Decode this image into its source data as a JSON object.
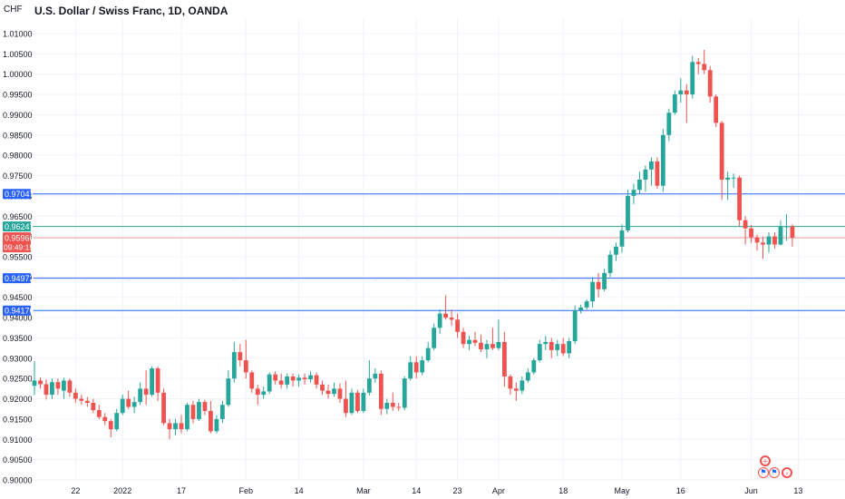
{
  "header": {
    "title": "U.S. Dollar / Swiss Franc, 1D, OANDA",
    "currency": "CHF"
  },
  "colors": {
    "up": "#26a69a",
    "down": "#ef5350",
    "level": "#2962ff",
    "current_line": "#ef9a9a",
    "highlight_line": "#26a69a"
  },
  "price_labels": {
    "current": "0.95966",
    "countdown": "09:49:15",
    "green": "0.96247"
  },
  "events": {
    "icons": [
      "plus-icon",
      "us-flag-icon",
      "us-flag-icon",
      "arrow-right-icon"
    ]
  },
  "chart_data": {
    "type": "candlestick",
    "title": "U.S. Dollar / Swiss Franc, 1D, OANDA",
    "xlabel": "",
    "ylabel": "",
    "ylim": [
      0.9,
      1.012
    ],
    "y_ticks": [
      "0.90000",
      "0.90500",
      "0.91000",
      "0.91500",
      "0.92000",
      "0.92500",
      "0.93000",
      "0.93500",
      "0.94000",
      "0.94500",
      "0.95000",
      "0.95500",
      "0.96000",
      "0.96500",
      "0.97000",
      "0.97500",
      "0.98000",
      "0.98500",
      "0.99000",
      "0.99500",
      "1.00000",
      "1.00500",
      "1.01000"
    ],
    "x_ticks": [
      {
        "label": "22",
        "date": "2021-12-22"
      },
      {
        "label": "2022",
        "date": "2022-01-03"
      },
      {
        "label": "17",
        "date": "2022-01-17"
      },
      {
        "label": "Feb",
        "date": "2022-02-01"
      },
      {
        "label": "14",
        "date": "2022-02-14"
      },
      {
        "label": "Mar",
        "date": "2022-03-01"
      },
      {
        "label": "14",
        "date": "2022-03-14"
      },
      {
        "label": "23",
        "date": "2022-03-23"
      },
      {
        "label": "Apr",
        "date": "2022-04-01"
      },
      {
        "label": "18",
        "date": "2022-04-18"
      },
      {
        "label": "May",
        "date": "2022-05-02"
      },
      {
        "label": "16",
        "date": "2022-05-16"
      },
      {
        "label": "Jun",
        "date": "2022-06-01"
      },
      {
        "label": "13",
        "date": "2022-06-13"
      }
    ],
    "horizontal_levels": [
      {
        "value": 0.97047,
        "label": "0.97047",
        "color": "#2962ff"
      },
      {
        "value": 0.96247,
        "label": "0.96247",
        "color": "#26a69a"
      },
      {
        "value": 0.94972,
        "label": "0.94972",
        "color": "#2962ff"
      },
      {
        "value": 0.94176,
        "label": "0.94176",
        "color": "#2962ff"
      }
    ],
    "current_price": 0.95966,
    "candles": [
      {
        "d": "2021-12-13",
        "o": 0.9232,
        "h": 0.9293,
        "l": 0.9209,
        "c": 0.9245
      },
      {
        "d": "2021-12-14",
        "o": 0.9245,
        "h": 0.9253,
        "l": 0.9225,
        "c": 0.9236
      },
      {
        "d": "2021-12-15",
        "o": 0.9236,
        "h": 0.9248,
        "l": 0.9198,
        "c": 0.921
      },
      {
        "d": "2021-12-16",
        "o": 0.921,
        "h": 0.925,
        "l": 0.92,
        "c": 0.9241
      },
      {
        "d": "2021-12-17",
        "o": 0.9241,
        "h": 0.925,
        "l": 0.921,
        "c": 0.9225
      },
      {
        "d": "2021-12-20",
        "o": 0.922,
        "h": 0.9252,
        "l": 0.92,
        "c": 0.9245
      },
      {
        "d": "2021-12-21",
        "o": 0.9245,
        "h": 0.925,
        "l": 0.9205,
        "c": 0.9215
      },
      {
        "d": "2021-12-22",
        "o": 0.9215,
        "h": 0.9225,
        "l": 0.919,
        "c": 0.92
      },
      {
        "d": "2021-12-23",
        "o": 0.92,
        "h": 0.921,
        "l": 0.9185,
        "c": 0.9195
      },
      {
        "d": "2021-12-24",
        "o": 0.9195,
        "h": 0.9205,
        "l": 0.918,
        "c": 0.919
      },
      {
        "d": "2021-12-27",
        "o": 0.919,
        "h": 0.92,
        "l": 0.9165,
        "c": 0.9172
      },
      {
        "d": "2021-12-28",
        "o": 0.9172,
        "h": 0.9185,
        "l": 0.915,
        "c": 0.9155
      },
      {
        "d": "2021-12-29",
        "o": 0.9155,
        "h": 0.9165,
        "l": 0.9135,
        "c": 0.9145
      },
      {
        "d": "2021-12-30",
        "o": 0.9145,
        "h": 0.915,
        "l": 0.9105,
        "c": 0.9125
      },
      {
        "d": "2021-12-31",
        "o": 0.9125,
        "h": 0.9175,
        "l": 0.912,
        "c": 0.9165
      },
      {
        "d": "2022-01-03",
        "o": 0.9165,
        "h": 0.921,
        "l": 0.916,
        "c": 0.92
      },
      {
        "d": "2022-01-04",
        "o": 0.92,
        "h": 0.922,
        "l": 0.9175,
        "c": 0.918
      },
      {
        "d": "2022-01-05",
        "o": 0.918,
        "h": 0.9205,
        "l": 0.9165,
        "c": 0.9192
      },
      {
        "d": "2022-01-06",
        "o": 0.9192,
        "h": 0.924,
        "l": 0.9185,
        "c": 0.9225
      },
      {
        "d": "2022-01-07",
        "o": 0.9225,
        "h": 0.927,
        "l": 0.9185,
        "c": 0.921
      },
      {
        "d": "2022-01-10",
        "o": 0.921,
        "h": 0.928,
        "l": 0.9205,
        "c": 0.9275
      },
      {
        "d": "2022-01-11",
        "o": 0.9275,
        "h": 0.928,
        "l": 0.9195,
        "c": 0.9215
      },
      {
        "d": "2022-01-12",
        "o": 0.9215,
        "h": 0.9225,
        "l": 0.9135,
        "c": 0.914
      },
      {
        "d": "2022-01-13",
        "o": 0.914,
        "h": 0.915,
        "l": 0.91,
        "c": 0.9125
      },
      {
        "d": "2022-01-14",
        "o": 0.9125,
        "h": 0.915,
        "l": 0.911,
        "c": 0.914
      },
      {
        "d": "2022-01-17",
        "o": 0.914,
        "h": 0.916,
        "l": 0.9115,
        "c": 0.9125
      },
      {
        "d": "2022-01-18",
        "o": 0.9125,
        "h": 0.919,
        "l": 0.912,
        "c": 0.9185
      },
      {
        "d": "2022-01-19",
        "o": 0.9185,
        "h": 0.9195,
        "l": 0.914,
        "c": 0.915
      },
      {
        "d": "2022-01-20",
        "o": 0.915,
        "h": 0.92,
        "l": 0.9145,
        "c": 0.9192
      },
      {
        "d": "2022-01-21",
        "o": 0.9192,
        "h": 0.9198,
        "l": 0.916,
        "c": 0.917
      },
      {
        "d": "2022-01-24",
        "o": 0.917,
        "h": 0.9195,
        "l": 0.9115,
        "c": 0.912
      },
      {
        "d": "2022-01-25",
        "o": 0.912,
        "h": 0.916,
        "l": 0.9115,
        "c": 0.915
      },
      {
        "d": "2022-01-26",
        "o": 0.915,
        "h": 0.9195,
        "l": 0.914,
        "c": 0.9185
      },
      {
        "d": "2022-01-27",
        "o": 0.9185,
        "h": 0.927,
        "l": 0.918,
        "c": 0.925
      },
      {
        "d": "2022-01-28",
        "o": 0.925,
        "h": 0.934,
        "l": 0.924,
        "c": 0.9315
      },
      {
        "d": "2022-01-31",
        "o": 0.9315,
        "h": 0.9335,
        "l": 0.928,
        "c": 0.9295
      },
      {
        "d": "2022-02-01",
        "o": 0.9295,
        "h": 0.9345,
        "l": 0.925,
        "c": 0.9265
      },
      {
        "d": "2022-02-02",
        "o": 0.9265,
        "h": 0.927,
        "l": 0.9215,
        "c": 0.9225
      },
      {
        "d": "2022-02-03",
        "o": 0.9225,
        "h": 0.9235,
        "l": 0.9185,
        "c": 0.921
      },
      {
        "d": "2022-02-04",
        "o": 0.921,
        "h": 0.923,
        "l": 0.92,
        "c": 0.9218
      },
      {
        "d": "2022-02-07",
        "o": 0.9218,
        "h": 0.9265,
        "l": 0.9212,
        "c": 0.926
      },
      {
        "d": "2022-02-08",
        "o": 0.926,
        "h": 0.9268,
        "l": 0.9235,
        "c": 0.9245
      },
      {
        "d": "2022-02-09",
        "o": 0.9245,
        "h": 0.9262,
        "l": 0.9225,
        "c": 0.9235
      },
      {
        "d": "2022-02-10",
        "o": 0.9235,
        "h": 0.9262,
        "l": 0.9225,
        "c": 0.9255
      },
      {
        "d": "2022-02-11",
        "o": 0.9255,
        "h": 0.9262,
        "l": 0.923,
        "c": 0.9245
      },
      {
        "d": "2022-02-14",
        "o": 0.9245,
        "h": 0.926,
        "l": 0.923,
        "c": 0.9252
      },
      {
        "d": "2022-02-15",
        "o": 0.9252,
        "h": 0.9262,
        "l": 0.9235,
        "c": 0.9248
      },
      {
        "d": "2022-02-16",
        "o": 0.9248,
        "h": 0.9268,
        "l": 0.924,
        "c": 0.9258
      },
      {
        "d": "2022-02-17",
        "o": 0.9258,
        "h": 0.9265,
        "l": 0.9225,
        "c": 0.9235
      },
      {
        "d": "2022-02-18",
        "o": 0.9235,
        "h": 0.9245,
        "l": 0.921,
        "c": 0.922
      },
      {
        "d": "2022-02-21",
        "o": 0.922,
        "h": 0.9235,
        "l": 0.92,
        "c": 0.9212
      },
      {
        "d": "2022-02-22",
        "o": 0.9212,
        "h": 0.924,
        "l": 0.9205,
        "c": 0.9225
      },
      {
        "d": "2022-02-23",
        "o": 0.9225,
        "h": 0.9238,
        "l": 0.919,
        "c": 0.92
      },
      {
        "d": "2022-02-24",
        "o": 0.92,
        "h": 0.9245,
        "l": 0.9155,
        "c": 0.9165
      },
      {
        "d": "2022-02-25",
        "o": 0.9165,
        "h": 0.9225,
        "l": 0.916,
        "c": 0.9215
      },
      {
        "d": "2022-02-28",
        "o": 0.9215,
        "h": 0.9222,
        "l": 0.9165,
        "c": 0.917
      },
      {
        "d": "2022-03-01",
        "o": 0.917,
        "h": 0.9225,
        "l": 0.9165,
        "c": 0.9215
      },
      {
        "d": "2022-03-02",
        "o": 0.9215,
        "h": 0.9295,
        "l": 0.9208,
        "c": 0.925
      },
      {
        "d": "2022-03-03",
        "o": 0.925,
        "h": 0.9275,
        "l": 0.924,
        "c": 0.9262
      },
      {
        "d": "2022-03-04",
        "o": 0.9262,
        "h": 0.927,
        "l": 0.916,
        "c": 0.9175
      },
      {
        "d": "2022-03-07",
        "o": 0.9175,
        "h": 0.92,
        "l": 0.9162,
        "c": 0.919
      },
      {
        "d": "2022-03-08",
        "o": 0.919,
        "h": 0.9215,
        "l": 0.917,
        "c": 0.918
      },
      {
        "d": "2022-03-09",
        "o": 0.918,
        "h": 0.919,
        "l": 0.917,
        "c": 0.9178
      },
      {
        "d": "2022-03-10",
        "o": 0.9178,
        "h": 0.9255,
        "l": 0.9172,
        "c": 0.925
      },
      {
        "d": "2022-03-11",
        "o": 0.925,
        "h": 0.9305,
        "l": 0.9245,
        "c": 0.929
      },
      {
        "d": "2022-03-14",
        "o": 0.929,
        "h": 0.9305,
        "l": 0.925,
        "c": 0.9265
      },
      {
        "d": "2022-03-15",
        "o": 0.9265,
        "h": 0.9305,
        "l": 0.9258,
        "c": 0.9295
      },
      {
        "d": "2022-03-16",
        "o": 0.9295,
        "h": 0.934,
        "l": 0.929,
        "c": 0.9325
      },
      {
        "d": "2022-03-17",
        "o": 0.9325,
        "h": 0.9385,
        "l": 0.932,
        "c": 0.9375
      },
      {
        "d": "2022-03-18",
        "o": 0.9375,
        "h": 0.942,
        "l": 0.936,
        "c": 0.941
      },
      {
        "d": "2022-03-21",
        "o": 0.941,
        "h": 0.9455,
        "l": 0.9395,
        "c": 0.94
      },
      {
        "d": "2022-03-22",
        "o": 0.94,
        "h": 0.942,
        "l": 0.938,
        "c": 0.9395
      },
      {
        "d": "2022-03-23",
        "o": 0.9395,
        "h": 0.941,
        "l": 0.935,
        "c": 0.9365
      },
      {
        "d": "2022-03-24",
        "o": 0.9365,
        "h": 0.9375,
        "l": 0.9325,
        "c": 0.9335
      },
      {
        "d": "2022-03-25",
        "o": 0.9335,
        "h": 0.9355,
        "l": 0.932,
        "c": 0.9345
      },
      {
        "d": "2022-03-28",
        "o": 0.9345,
        "h": 0.9365,
        "l": 0.933,
        "c": 0.9338
      },
      {
        "d": "2022-03-29",
        "o": 0.9338,
        "h": 0.9358,
        "l": 0.9315,
        "c": 0.9322
      },
      {
        "d": "2022-03-30",
        "o": 0.9322,
        "h": 0.9345,
        "l": 0.93,
        "c": 0.9335
      },
      {
        "d": "2022-03-31",
        "o": 0.9335,
        "h": 0.9375,
        "l": 0.932,
        "c": 0.9325
      },
      {
        "d": "2022-04-01",
        "o": 0.9325,
        "h": 0.9395,
        "l": 0.932,
        "c": 0.934
      },
      {
        "d": "2022-04-04",
        "o": 0.934,
        "h": 0.9365,
        "l": 0.923,
        "c": 0.9255
      },
      {
        "d": "2022-04-05",
        "o": 0.9255,
        "h": 0.926,
        "l": 0.921,
        "c": 0.9225
      },
      {
        "d": "2022-04-06",
        "o": 0.9225,
        "h": 0.924,
        "l": 0.9195,
        "c": 0.922
      },
      {
        "d": "2022-04-07",
        "o": 0.922,
        "h": 0.9255,
        "l": 0.9212,
        "c": 0.9245
      },
      {
        "d": "2022-04-08",
        "o": 0.9245,
        "h": 0.9275,
        "l": 0.924,
        "c": 0.9265
      },
      {
        "d": "2022-04-11",
        "o": 0.9265,
        "h": 0.93,
        "l": 0.926,
        "c": 0.9295
      },
      {
        "d": "2022-04-12",
        "o": 0.9295,
        "h": 0.9345,
        "l": 0.929,
        "c": 0.9335
      },
      {
        "d": "2022-04-13",
        "o": 0.9335,
        "h": 0.9355,
        "l": 0.932,
        "c": 0.934
      },
      {
        "d": "2022-04-14",
        "o": 0.934,
        "h": 0.935,
        "l": 0.93,
        "c": 0.932
      },
      {
        "d": "2022-04-15",
        "o": 0.932,
        "h": 0.9345,
        "l": 0.9305,
        "c": 0.9335
      },
      {
        "d": "2022-04-18",
        "o": 0.9335,
        "h": 0.935,
        "l": 0.9305,
        "c": 0.9312
      },
      {
        "d": "2022-04-19",
        "o": 0.9312,
        "h": 0.935,
        "l": 0.93,
        "c": 0.9342
      },
      {
        "d": "2022-04-20",
        "o": 0.9342,
        "h": 0.943,
        "l": 0.9335,
        "c": 0.9418
      },
      {
        "d": "2022-04-21",
        "o": 0.9418,
        "h": 0.9432,
        "l": 0.941,
        "c": 0.9425
      },
      {
        "d": "2022-04-22",
        "o": 0.9425,
        "h": 0.9445,
        "l": 0.942,
        "c": 0.944
      },
      {
        "d": "2022-04-25",
        "o": 0.944,
        "h": 0.95,
        "l": 0.9425,
        "c": 0.9488
      },
      {
        "d": "2022-04-26",
        "o": 0.9488,
        "h": 0.951,
        "l": 0.945,
        "c": 0.947
      },
      {
        "d": "2022-04-27",
        "o": 0.947,
        "h": 0.952,
        "l": 0.9465,
        "c": 0.951
      },
      {
        "d": "2022-04-28",
        "o": 0.951,
        "h": 0.9565,
        "l": 0.95,
        "c": 0.9555
      },
      {
        "d": "2022-04-29",
        "o": 0.9555,
        "h": 0.9585,
        "l": 0.954,
        "c": 0.9575
      },
      {
        "d": "2022-05-02",
        "o": 0.9575,
        "h": 0.963,
        "l": 0.956,
        "c": 0.9615
      },
      {
        "d": "2022-05-03",
        "o": 0.9615,
        "h": 0.9715,
        "l": 0.961,
        "c": 0.97
      },
      {
        "d": "2022-05-04",
        "o": 0.97,
        "h": 0.973,
        "l": 0.968,
        "c": 0.9715
      },
      {
        "d": "2022-05-05",
        "o": 0.9715,
        "h": 0.976,
        "l": 0.9705,
        "c": 0.974
      },
      {
        "d": "2022-05-06",
        "o": 0.974,
        "h": 0.9775,
        "l": 0.971,
        "c": 0.9765
      },
      {
        "d": "2022-05-09",
        "o": 0.9765,
        "h": 0.9795,
        "l": 0.9725,
        "c": 0.9785
      },
      {
        "d": "2022-05-10",
        "o": 0.9785,
        "h": 0.9795,
        "l": 0.9718,
        "c": 0.9725
      },
      {
        "d": "2022-05-11",
        "o": 0.9725,
        "h": 0.9865,
        "l": 0.971,
        "c": 0.985
      },
      {
        "d": "2022-05-12",
        "o": 0.985,
        "h": 0.9915,
        "l": 0.9835,
        "c": 0.9905
      },
      {
        "d": "2022-05-13",
        "o": 0.9905,
        "h": 0.996,
        "l": 0.99,
        "c": 0.995
      },
      {
        "d": "2022-05-16",
        "o": 0.995,
        "h": 0.999,
        "l": 0.993,
        "c": 0.996
      },
      {
        "d": "2022-05-17",
        "o": 0.996,
        "h": 0.9975,
        "l": 0.988,
        "c": 0.995
      },
      {
        "d": "2022-05-18",
        "o": 0.995,
        "h": 1.0045,
        "l": 0.994,
        "c": 1.003
      },
      {
        "d": "2022-05-19",
        "o": 1.003,
        "h": 1.004,
        "l": 1.0,
        "c": 1.0025
      },
      {
        "d": "2022-05-20",
        "o": 1.0025,
        "h": 1.006,
        "l": 1.0,
        "c": 1.001
      },
      {
        "d": "2022-05-23",
        "o": 1.001,
        "h": 1.002,
        "l": 0.993,
        "c": 0.9945
      },
      {
        "d": "2022-05-24",
        "o": 0.9945,
        "h": 0.995,
        "l": 0.987,
        "c": 0.988
      },
      {
        "d": "2022-05-25",
        "o": 0.988,
        "h": 0.9885,
        "l": 0.969,
        "c": 0.974
      },
      {
        "d": "2022-05-26",
        "o": 0.974,
        "h": 0.976,
        "l": 0.969,
        "c": 0.9745
      },
      {
        "d": "2022-05-27",
        "o": 0.9745,
        "h": 0.9755,
        "l": 0.972,
        "c": 0.9745
      },
      {
        "d": "2022-05-30",
        "o": 0.9745,
        "h": 0.975,
        "l": 0.9625,
        "c": 0.964
      },
      {
        "d": "2022-05-31",
        "o": 0.964,
        "h": 0.965,
        "l": 0.958,
        "c": 0.962
      },
      {
        "d": "2022-06-01",
        "o": 0.962,
        "h": 0.9628,
        "l": 0.9585,
        "c": 0.9598
      },
      {
        "d": "2022-06-02",
        "o": 0.9598,
        "h": 0.9605,
        "l": 0.9565,
        "c": 0.9585
      },
      {
        "d": "2022-06-03",
        "o": 0.9585,
        "h": 0.96,
        "l": 0.9545,
        "c": 0.958
      },
      {
        "d": "2022-06-06",
        "o": 0.958,
        "h": 0.961,
        "l": 0.956,
        "c": 0.96
      },
      {
        "d": "2022-06-07",
        "o": 0.96,
        "h": 0.961,
        "l": 0.957,
        "c": 0.958
      },
      {
        "d": "2022-06-08",
        "o": 0.958,
        "h": 0.964,
        "l": 0.9578,
        "c": 0.9625
      },
      {
        "d": "2022-06-09",
        "o": 0.9625,
        "h": 0.9655,
        "l": 0.959,
        "c": 0.9625
      },
      {
        "d": "2022-06-10",
        "o": 0.9625,
        "h": 0.963,
        "l": 0.9575,
        "c": 0.9597
      }
    ]
  }
}
